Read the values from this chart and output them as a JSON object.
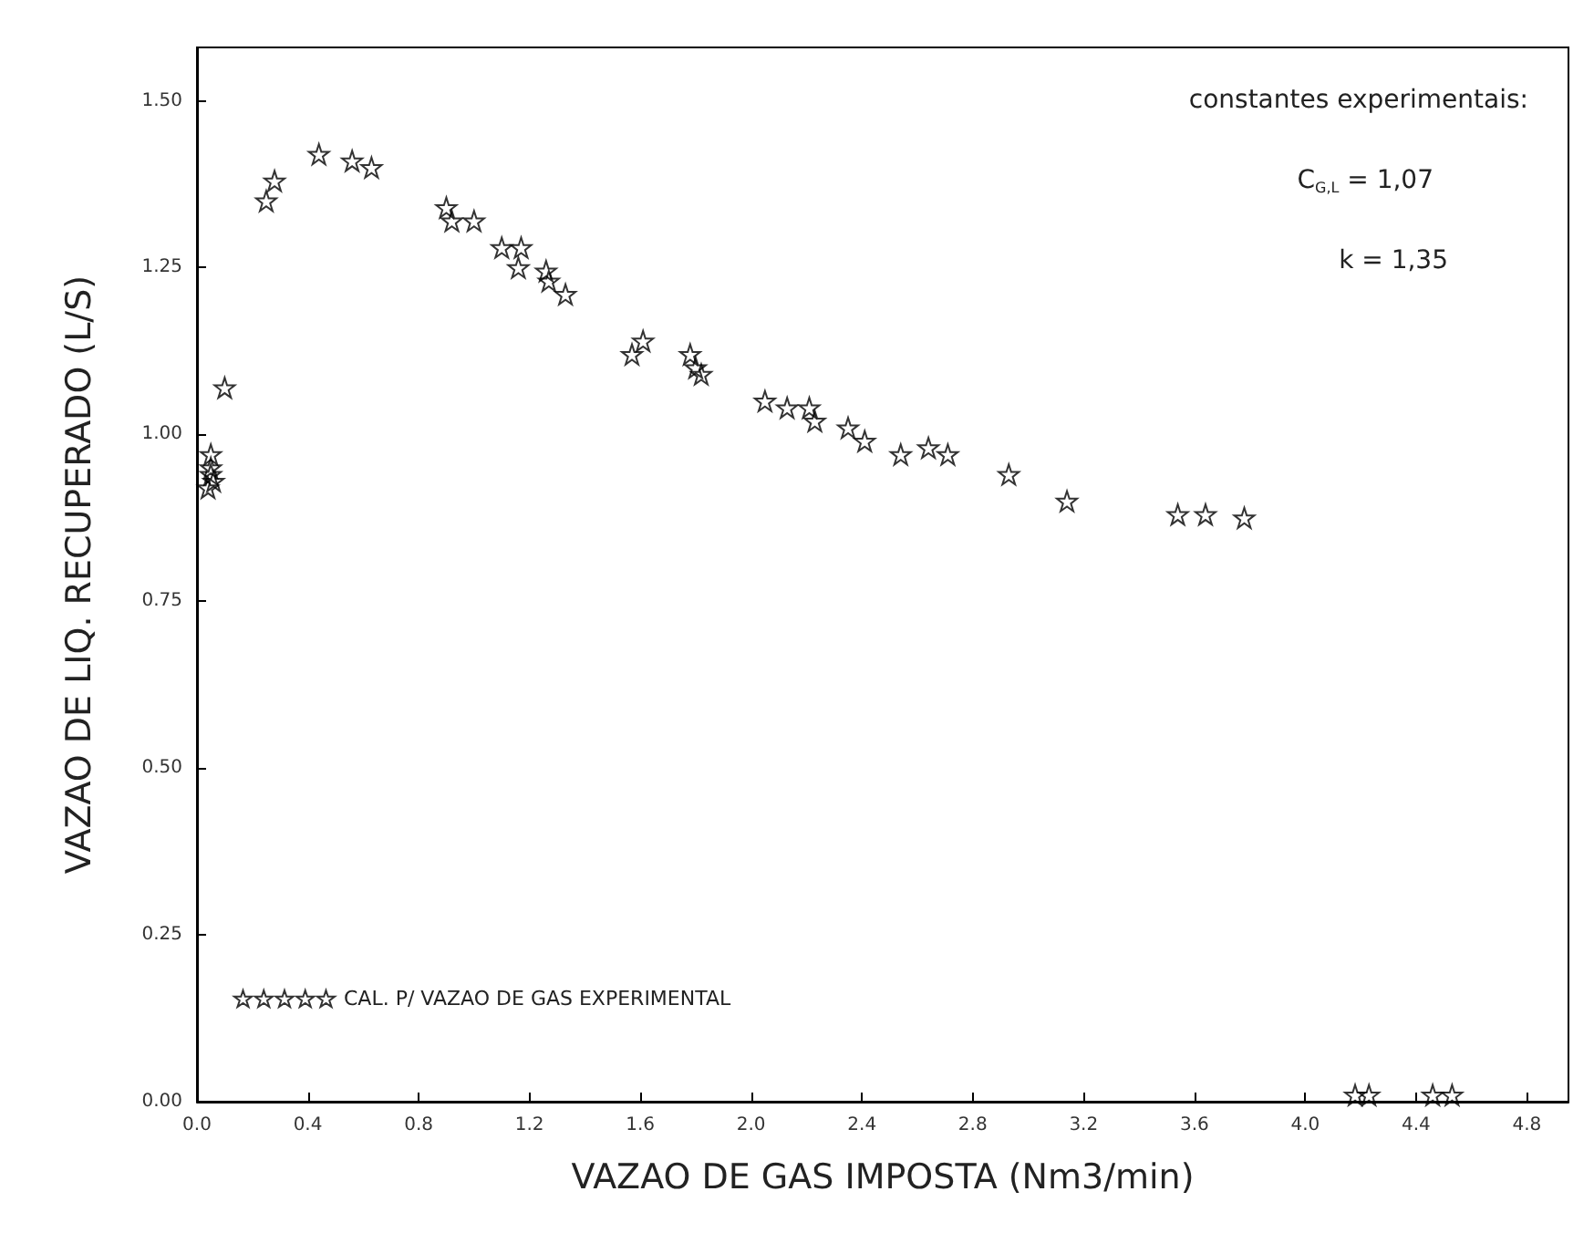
{
  "chart_data": {
    "type": "scatter",
    "xlabel": "VAZAO DE GAS IMPOSTA (Nm3/min)",
    "ylabel": "VAZAO DE LIQ. RECUPERADO (L/S)",
    "annotations": [
      "constantes experimentais:",
      "C$_{G,L}$ = 1,07",
      "k = 1,35"
    ],
    "xlim": [
      0,
      4.95
    ],
    "ylim": [
      0,
      1.58
    ],
    "xticks": [
      {
        "value": 0,
        "label": "0.0"
      },
      {
        "value": 0.4,
        "label": "0.4"
      },
      {
        "value": 0.8,
        "label": "0.8"
      },
      {
        "value": 1.2,
        "label": "1.2"
      },
      {
        "value": 1.6,
        "label": "1.6"
      },
      {
        "value": 2,
        "label": "2.0"
      },
      {
        "value": 2.4,
        "label": "2.4"
      },
      {
        "value": 2.8,
        "label": "2.8"
      },
      {
        "value": 3.2,
        "label": "3.2"
      },
      {
        "value": 3.6,
        "label": "3.6"
      },
      {
        "value": 4,
        "label": "4.0"
      },
      {
        "value": 4.4,
        "label": "4.4"
      },
      {
        "value": 4.8,
        "label": "4.8"
      }
    ],
    "yticks": [
      {
        "value": 0,
        "label": "0.00"
      },
      {
        "value": 0.25,
        "label": "0.25"
      },
      {
        "value": 0.5,
        "label": "0.50"
      },
      {
        "value": 0.75,
        "label": "0.75"
      },
      {
        "value": 1,
        "label": "1.00"
      },
      {
        "value": 1.25,
        "label": "1.25"
      },
      {
        "value": 1.5,
        "label": "1.50"
      }
    ],
    "marker": "star",
    "legend": "bottom left",
    "series": [
      {
        "name": "CAL. P/ VAZAO DE GAS EXPERIMENTAL",
        "color": "#000000",
        "x": [
          0.05,
          0.05,
          0.06,
          0.04,
          0.05,
          0.1,
          0.25,
          0.28,
          0.44,
          0.56,
          0.63,
          0.9,
          0.92,
          1.0,
          1.1,
          1.17,
          1.16,
          1.26,
          1.27,
          1.33,
          1.57,
          1.61,
          1.78,
          1.8,
          1.82,
          2.05,
          2.13,
          2.21,
          2.23,
          2.35,
          2.41,
          2.54,
          2.64,
          2.71,
          2.93,
          3.14,
          3.54,
          3.64,
          3.78,
          4.18,
          4.23,
          4.46,
          4.53
        ],
        "values": [
          0.97,
          0.95,
          0.93,
          0.92,
          0.94,
          1.07,
          1.35,
          1.38,
          1.42,
          1.41,
          1.4,
          1.34,
          1.32,
          1.32,
          1.28,
          1.28,
          1.25,
          1.245,
          1.23,
          1.21,
          1.12,
          1.14,
          1.12,
          1.1,
          1.09,
          1.05,
          1.04,
          1.04,
          1.02,
          1.01,
          0.99,
          0.97,
          0.98,
          0.97,
          0.94,
          0.9,
          0.88,
          0.88,
          0.875,
          0.01,
          0.01,
          0.01,
          0.01
        ]
      }
    ]
  }
}
